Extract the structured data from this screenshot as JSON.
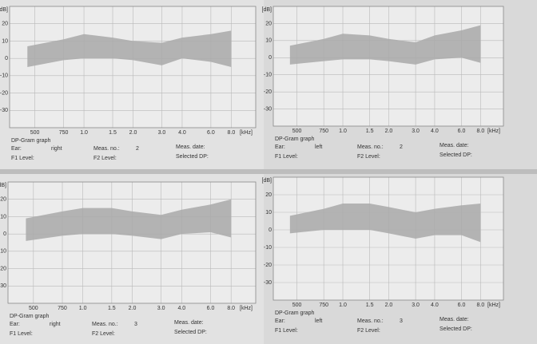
{
  "chart_data": [
    {
      "type": "band",
      "title": "DP-Gram graph",
      "ylabel": "[dB]",
      "xlabel": "[kHz]",
      "xscale": "log",
      "grid": true,
      "color": "#a9a9a9",
      "xlim": [
        0.35,
        11.3
      ],
      "ylim": [
        -40,
        30
      ],
      "xticks": [
        {
          "value": 0.5,
          "label": "500"
        },
        {
          "value": 0.75,
          "label": "750"
        },
        {
          "value": 1,
          "label": "1.0"
        },
        1.5,
        {
          "value": 2,
          "label": "2.0"
        },
        {
          "value": 3,
          "label": "3.0"
        },
        {
          "value": 4,
          "label": "4.0"
        },
        {
          "value": 6,
          "label": "6.0"
        },
        {
          "value": 8,
          "label": "8.0"
        }
      ],
      "yticks": [
        20,
        10,
        0,
        -10,
        -20,
        -30
      ],
      "x": [
        0.45,
        0.75,
        1,
        1.5,
        2,
        3,
        4,
        6,
        8
      ],
      "high": [
        7,
        11,
        14,
        12,
        10,
        9,
        12,
        14,
        16
      ],
      "low": [
        -5,
        -1,
        0,
        0,
        -1,
        -4,
        0,
        -2,
        -5
      ],
      "fields": [
        {
          "label": "Ear:",
          "value": "right"
        },
        {
          "label": "Meas. no.:",
          "value": "2"
        },
        {
          "label": "Meas. date:"
        },
        {
          "label": "F1 Level:"
        },
        {
          "label": "F2 Level:"
        },
        {
          "label": "Selected DP:"
        }
      ]
    },
    {
      "type": "band",
      "title": "DP-Gram graph",
      "ylabel": "[dB]",
      "xlabel": "[kHz]",
      "xscale": "log",
      "grid": true,
      "color": "#a9a9a9",
      "xlim": [
        0.35,
        11.3
      ],
      "ylim": [
        -40,
        30
      ],
      "xticks": [
        {
          "value": 0.5,
          "label": "500"
        },
        {
          "value": 0.75,
          "label": "750"
        },
        {
          "value": 1,
          "label": "1.0"
        },
        1.5,
        {
          "value": 2,
          "label": "2.0"
        },
        {
          "value": 3,
          "label": "3.0"
        },
        {
          "value": 4,
          "label": "4.0"
        },
        {
          "value": 6,
          "label": "6.0"
        },
        {
          "value": 8,
          "label": "8.0"
        }
      ],
      "yticks": [
        20,
        10,
        0,
        -10,
        -20,
        -30
      ],
      "x": [
        0.45,
        0.75,
        1,
        1.5,
        2,
        3,
        4,
        6,
        8
      ],
      "high": [
        7,
        11,
        14,
        13,
        11,
        9,
        13,
        16,
        19
      ],
      "low": [
        -4,
        -2,
        -1,
        -1,
        -2,
        -4,
        -1,
        0,
        -3
      ],
      "fields": [
        {
          "label": "Ear:",
          "value": "left"
        },
        {
          "label": "Meas. no.:",
          "value": "2"
        },
        {
          "label": "Meas. date:"
        },
        {
          "label": "F1 Level:"
        },
        {
          "label": "F2 Level:"
        },
        {
          "label": "Selected DP:"
        }
      ]
    },
    {
      "type": "band",
      "title": "DP-Gram graph",
      "ylabel": "[dB]",
      "xlabel": "[kHz]",
      "xscale": "log",
      "grid": true,
      "color": "#a9a9a9",
      "xlim": [
        0.35,
        11.3
      ],
      "ylim": [
        -40,
        30
      ],
      "xticks": [
        {
          "value": 0.5,
          "label": "500"
        },
        {
          "value": 0.75,
          "label": "750"
        },
        {
          "value": 1,
          "label": "1.0"
        },
        1.5,
        {
          "value": 2,
          "label": "2.0"
        },
        {
          "value": 3,
          "label": "3.0"
        },
        {
          "value": 4,
          "label": "4.0"
        },
        {
          "value": 6,
          "label": "6.0"
        },
        {
          "value": 8,
          "label": "8.0"
        }
      ],
      "yticks": [
        20,
        10,
        0,
        -10,
        -20,
        -30
      ],
      "x": [
        0.45,
        0.75,
        1,
        1.5,
        2,
        3,
        4,
        6,
        8
      ],
      "high": [
        9,
        13,
        15,
        15,
        13,
        11,
        14,
        17,
        20
      ],
      "low": [
        -4,
        -1,
        0,
        0,
        -1,
        -3,
        0,
        1,
        -2
      ],
      "fields": [
        {
          "label": "Ear:",
          "value": "right"
        },
        {
          "label": "Meas. no.:",
          "value": "3"
        },
        {
          "label": "Meas. date:"
        },
        {
          "label": "F1 Level:"
        },
        {
          "label": "F2 Level:"
        },
        {
          "label": "Selected DP:"
        }
      ]
    },
    {
      "type": "band",
      "title": "DP-Gram graph",
      "ylabel": "[dB]",
      "xlabel": "[kHz]",
      "xscale": "log",
      "grid": true,
      "color": "#a9a9a9",
      "xlim": [
        0.35,
        11.3
      ],
      "ylim": [
        -40,
        30
      ],
      "xticks": [
        {
          "value": 0.5,
          "label": "500"
        },
        {
          "value": 0.75,
          "label": "750"
        },
        {
          "value": 1,
          "label": "1.0"
        },
        1.5,
        {
          "value": 2,
          "label": "2.0"
        },
        {
          "value": 3,
          "label": "3.0"
        },
        {
          "value": 4,
          "label": "4.0"
        },
        {
          "value": 6,
          "label": "6.0"
        },
        {
          "value": 8,
          "label": "8.0"
        }
      ],
      "yticks": [
        20,
        10,
        0,
        -10,
        -20,
        -30
      ],
      "x": [
        0.45,
        0.75,
        1,
        1.5,
        2,
        3,
        4,
        6,
        8
      ],
      "high": [
        8,
        12,
        15,
        15,
        13,
        10,
        12,
        14,
        15
      ],
      "low": [
        -2,
        0,
        0,
        0,
        -2,
        -5,
        -3,
        -3,
        -7
      ],
      "fields": [
        {
          "label": "Ear:",
          "value": "left"
        },
        {
          "label": "Meas. no.:",
          "value": "3"
        },
        {
          "label": "Meas. date:"
        },
        {
          "label": "F1 Level:"
        },
        {
          "label": "F2 Level:"
        },
        {
          "label": "Selected DP:"
        }
      ]
    }
  ]
}
